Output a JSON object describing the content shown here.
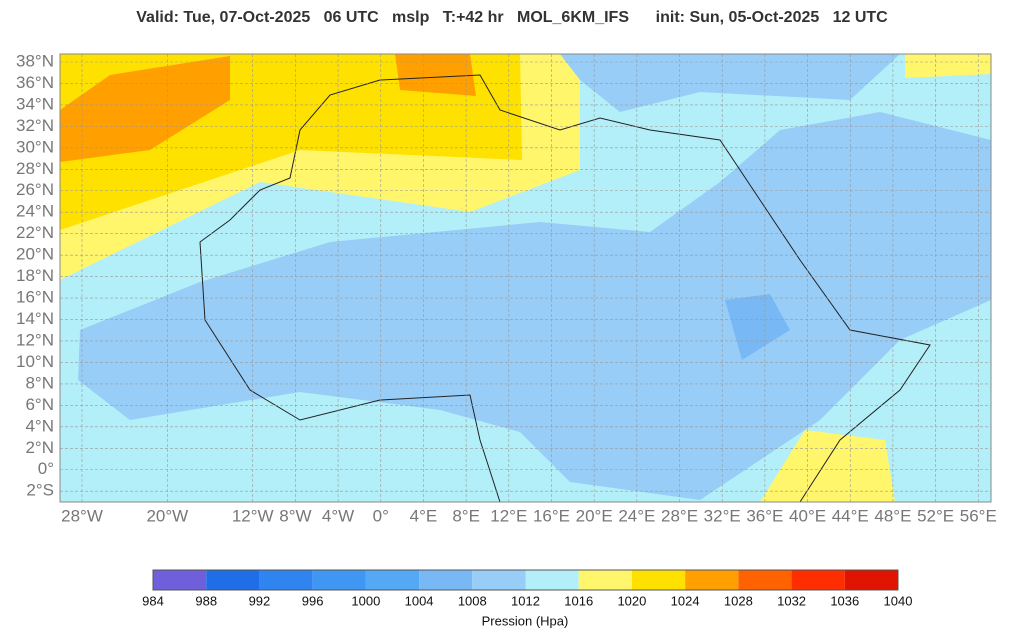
{
  "header": {
    "title": "Valid: Tue, 07-Oct-2025   06 UTC   mslp   T:+42 hr   MOL_6KM_IFS      init: Sun, 05-Oct-2025   12 UTC"
  },
  "map": {
    "lat_ticks": [
      {
        "value": 38,
        "label": "38°N"
      },
      {
        "value": 36,
        "label": "36°N"
      },
      {
        "value": 34,
        "label": "34°N"
      },
      {
        "value": 32,
        "label": "32°N"
      },
      {
        "value": 30,
        "label": "30°N"
      },
      {
        "value": 28,
        "label": "28°N"
      },
      {
        "value": 26,
        "label": "26°N"
      },
      {
        "value": 24,
        "label": "24°N"
      },
      {
        "value": 22,
        "label": "22°N"
      },
      {
        "value": 20,
        "label": "20°N"
      },
      {
        "value": 18,
        "label": "18°N"
      },
      {
        "value": 16,
        "label": "16°N"
      },
      {
        "value": 14,
        "label": "14°N"
      },
      {
        "value": 12,
        "label": "12°N"
      },
      {
        "value": 10,
        "label": "10°N"
      },
      {
        "value": 8,
        "label": "8°N"
      },
      {
        "value": 6,
        "label": "6°N"
      },
      {
        "value": 4,
        "label": "4°N"
      },
      {
        "value": 2,
        "label": "2°N"
      },
      {
        "value": 0,
        "label": "0°"
      },
      {
        "value": -2,
        "label": "2°S"
      }
    ],
    "lon_ticks": [
      {
        "value": -28,
        "label": "28°W"
      },
      {
        "value": -20,
        "label": "20°W"
      },
      {
        "value": -12,
        "label": "12°W"
      },
      {
        "value": -8,
        "label": "8°W"
      },
      {
        "value": -4,
        "label": "4°W"
      },
      {
        "value": 0,
        "label": "0°"
      },
      {
        "value": 4,
        "label": "4°E"
      },
      {
        "value": 8,
        "label": "8°E"
      },
      {
        "value": 12,
        "label": "12°E"
      },
      {
        "value": 16,
        "label": "16°E"
      },
      {
        "value": 20,
        "label": "20°E"
      },
      {
        "value": 24,
        "label": "24°E"
      },
      {
        "value": 28,
        "label": "28°E"
      },
      {
        "value": 32,
        "label": "32°E"
      },
      {
        "value": 36,
        "label": "36°E"
      },
      {
        "value": 40,
        "label": "40°E"
      },
      {
        "value": 44,
        "label": "44°E"
      },
      {
        "value": 48,
        "label": "48°E"
      },
      {
        "value": 52,
        "label": "52°E"
      },
      {
        "value": 56,
        "label": "56°E"
      }
    ]
  },
  "colorbar": {
    "ticks": [
      984,
      988,
      992,
      996,
      1000,
      1004,
      1008,
      1012,
      1016,
      1020,
      1024,
      1028,
      1032,
      1036,
      1040
    ],
    "colors": [
      "#6f5fdb",
      "#1f6ee8",
      "#2f84f0",
      "#3f96f3",
      "#55a8f3",
      "#78b9f5",
      "#98cdf7",
      "#b3eff8",
      "#fff66b",
      "#ffe100",
      "#ffa000",
      "#ff6200",
      "#ff2e00",
      "#e01400"
    ],
    "label": "Pression (Hpa)"
  }
}
